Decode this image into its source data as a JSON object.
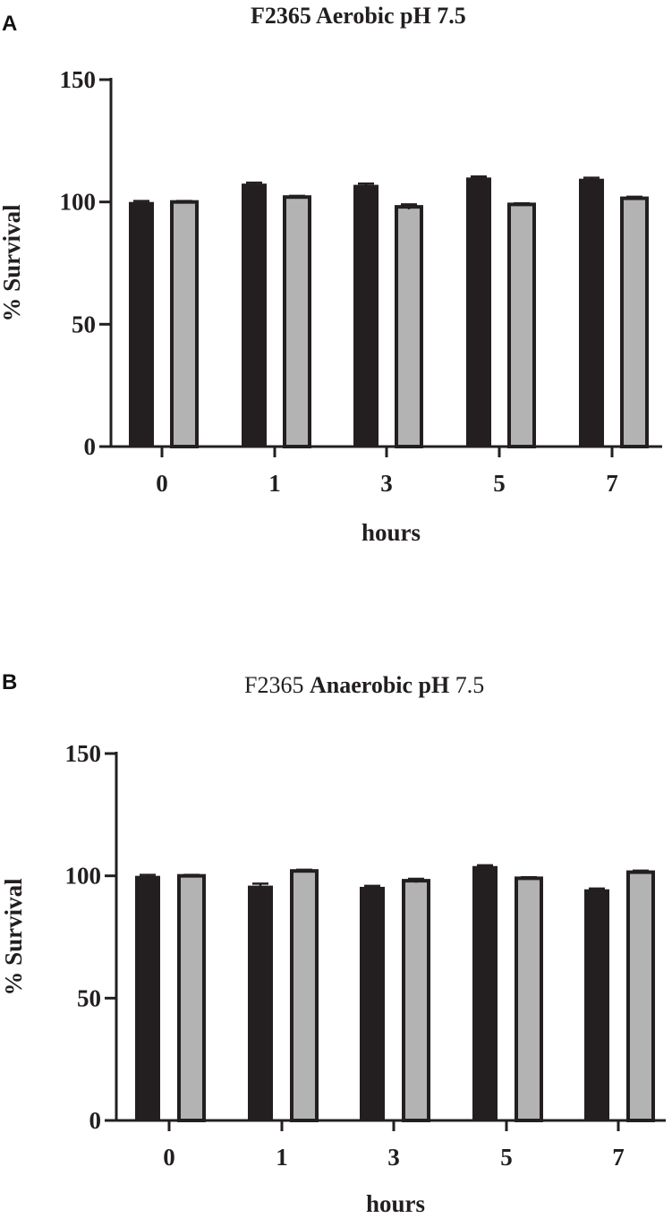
{
  "panels": [
    {
      "letter": "A",
      "title_parts": [
        {
          "text": "F2365 Aerobic pH 7.5",
          "weight": "bold"
        }
      ]
    },
    {
      "letter": "B",
      "title_parts": [
        {
          "text": "F2365 ",
          "weight": "normal"
        },
        {
          "text": "Anaerobic pH",
          "weight": "bold"
        },
        {
          "text": " 7.5",
          "weight": "normal"
        }
      ]
    }
  ],
  "chart_data": [
    {
      "type": "bar",
      "title": "F2365 Aerobic pH 7.5",
      "xlabel": "hours",
      "ylabel": "% Survival",
      "ylim": [
        0,
        150
      ],
      "yticks": [
        0,
        50,
        100,
        150
      ],
      "categories": [
        "0",
        "1",
        "3",
        "5",
        "7"
      ],
      "series": [
        {
          "values": [
            100,
            107.5,
            107,
            110,
            109.5
          ],
          "errors": [
            0.4,
            0.4,
            0.5,
            0.4,
            0.4
          ],
          "color": "#231f20"
        },
        {
          "values": [
            100,
            102,
            98,
            99,
            101.5
          ],
          "errors": [
            0.4,
            0.5,
            1.0,
            0.4,
            0.6
          ],
          "color": "#b3b3b3"
        }
      ]
    },
    {
      "type": "bar",
      "title": "F2365 Anaerobic pH 7.5",
      "xlabel": "hours",
      "ylabel": "% Survival",
      "ylim": [
        0,
        150
      ],
      "yticks": [
        0,
        50,
        100,
        150
      ],
      "categories": [
        "0",
        "1",
        "3",
        "5",
        "7"
      ],
      "series": [
        {
          "values": [
            100,
            96,
            95.5,
            104,
            94.5
          ],
          "errors": [
            0.4,
            0.8,
            0.4,
            0.3,
            0.3
          ],
          "color": "#231f20"
        },
        {
          "values": [
            100,
            102,
            98,
            99,
            101.5
          ],
          "errors": [
            0.4,
            0.5,
            0.8,
            0.4,
            0.6
          ],
          "color": "#b3b3b3"
        }
      ]
    }
  ]
}
